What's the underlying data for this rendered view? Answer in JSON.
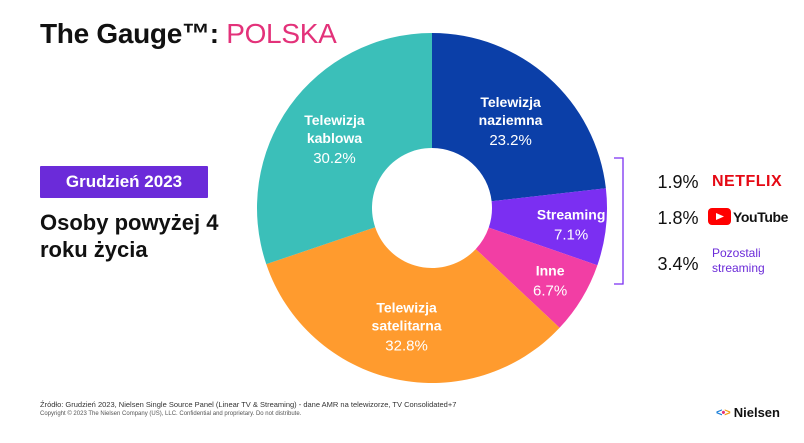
{
  "header": {
    "brand": "The Gauge™:",
    "country": "POLSKA"
  },
  "badge": "Grudzień 2023",
  "subtitle": "Osoby powyżej 4 roku życia",
  "chart_data": {
    "type": "pie",
    "donut": true,
    "slices": [
      {
        "label": [
          "Telewizja",
          "naziemna"
        ],
        "value": 23.2,
        "value_label": "23.2%",
        "color": "#0b3fa8"
      },
      {
        "label": [
          "Streaming"
        ],
        "value": 7.1,
        "value_label": "7.1%",
        "color": "#7b2ff2"
      },
      {
        "label": [
          "Inne"
        ],
        "value": 6.7,
        "value_label": "6.7%",
        "color": "#f23ea4"
      },
      {
        "label": [
          "Telewizja",
          "satelitarna"
        ],
        "value": 32.8,
        "value_label": "32.8%",
        "color": "#ff9b2e"
      },
      {
        "label": [
          "Telewizja",
          "kablowa"
        ],
        "value": 30.2,
        "value_label": "30.2%",
        "color": "#3bbfb9"
      }
    ],
    "streaming_breakdown": [
      {
        "value_label": "1.9%",
        "name": "NETFLIX",
        "logo": "netflix-logo"
      },
      {
        "value_label": "1.8%",
        "name": "YouTube",
        "logo": "youtube-logo"
      },
      {
        "value_label": "3.4%",
        "name": [
          "Pozostali",
          "streaming"
        ],
        "logo": "text"
      }
    ]
  },
  "footer": {
    "source": "Źródło: Grudzień  2023, Nielsen Single Source Panel (Linear TV & Streaming) - dane AMR na telewizorze, TV Consolidated+7",
    "copyright": "Copyright © 2023 The Nielsen Company (US), LLC. Confidential and proprietary. Do not distribute."
  },
  "logo": {
    "text": "Nielsen"
  },
  "colors": {
    "accent_pink": "#e3327a",
    "badge_purple": "#6b2bd9",
    "bracket": "#7b2ff2"
  }
}
